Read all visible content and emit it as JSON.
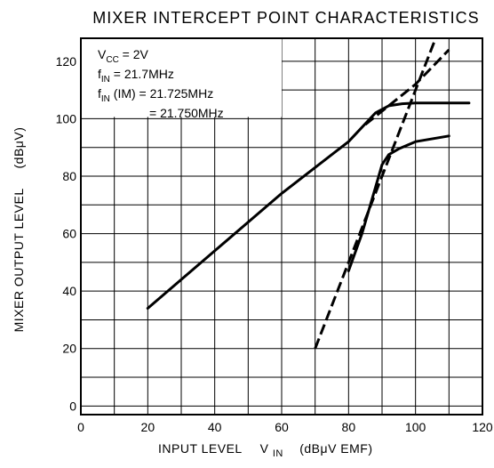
{
  "chart_data": {
    "type": "line",
    "title": "MIXER INTERCEPT POINT CHARACTERISTICS",
    "xlabel": {
      "main": "INPUT LEVEL",
      "var": "V",
      "sub": "IN",
      "unit": "(dBμV EMF)"
    },
    "ylabel": {
      "main": "MIXER OUTPUT LEVEL",
      "unit": "(dBμV)"
    },
    "xlim": [
      0,
      120
    ],
    "ylim": [
      -3,
      128
    ],
    "xticks": [
      0,
      20,
      40,
      60,
      80,
      100,
      120
    ],
    "yticks": [
      0,
      20,
      40,
      60,
      80,
      100,
      120
    ],
    "grid": true,
    "annotations": {
      "vcc": {
        "var": "V",
        "sub": "CC",
        "value": " = 2V"
      },
      "fin": {
        "var": "f",
        "sub": "IN",
        "value": " = 21.7MHz"
      },
      "fin_im": {
        "var": "f",
        "sub": "IN",
        "suffix": " (IM)",
        "value": " = 21.725MHz"
      },
      "fin_im2": {
        "value": "= 21.750MHz"
      }
    },
    "series": [
      {
        "style": "solid",
        "points": [
          [
            20,
            34
          ],
          [
            40,
            54
          ],
          [
            60,
            74
          ],
          [
            80,
            92
          ],
          [
            88,
            102
          ],
          [
            92,
            104.5
          ],
          [
            96,
            105.2
          ],
          [
            100,
            105.5
          ],
          [
            110,
            105.5
          ],
          [
            116,
            105.5
          ]
        ]
      },
      {
        "style": "solid",
        "points": [
          [
            80,
            47
          ],
          [
            84,
            60
          ],
          [
            88,
            76
          ],
          [
            90,
            84
          ],
          [
            92,
            87.5
          ],
          [
            95,
            89.5
          ],
          [
            100,
            92
          ],
          [
            110,
            94
          ]
        ]
      },
      {
        "style": "dashed",
        "points": [
          [
            85,
            98
          ],
          [
            92,
            104.5
          ],
          [
            100,
            112
          ],
          [
            110,
            124
          ]
        ]
      },
      {
        "style": "dashed",
        "points": [
          [
            70,
            20
          ],
          [
            106,
            128
          ]
        ]
      }
    ]
  }
}
